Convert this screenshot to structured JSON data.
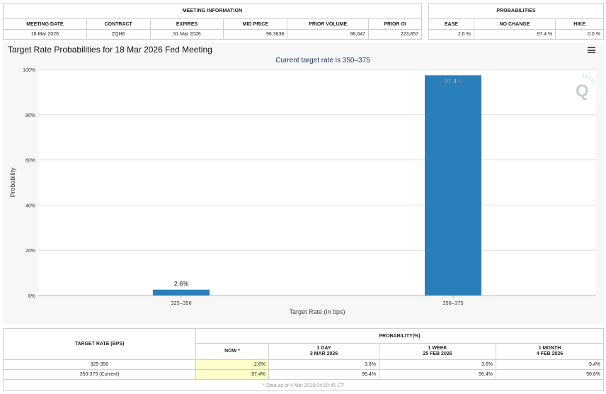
{
  "meeting_info": {
    "header": "MEETING INFORMATION",
    "columns": [
      "MEETING DATE",
      "CONTRACT",
      "EXPIRES",
      "MID PRICE",
      "PRIOR VOLUME",
      "PRIOR OI"
    ],
    "values": [
      "18 Mar 2026",
      "ZQH6",
      "31 Mar 2026",
      "96.3638",
      "98,647",
      "223,857"
    ]
  },
  "probabilities": {
    "header": "PROBABILITIES",
    "columns": [
      "EASE",
      "NO CHANGE",
      "HIKE"
    ],
    "values": [
      "2.6 %",
      "97.4 %",
      "0.0 %"
    ]
  },
  "chart_title": "Target Rate Probabilities for 18 Mar 2026 Fed Meeting",
  "chart_data": {
    "type": "bar",
    "title": "Current target rate is 350–375",
    "xlabel": "Target Rate (in bps)",
    "ylabel": "Probability",
    "categories": [
      "325–350",
      "350–375"
    ],
    "values": [
      2.6,
      97.4
    ],
    "data_labels": [
      "2.6%",
      "97.4%"
    ],
    "ylim": [
      0,
      100
    ],
    "yticks": [
      "0%",
      "20%",
      "40%",
      "60%",
      "80%",
      "100%"
    ],
    "grid": true,
    "bar_color": "#2a7fba"
  },
  "bottom_table": {
    "left_header": "TARGET RATE (BPS)",
    "prob_header": "PROBABILITY(%)",
    "now_label": "NOW *",
    "periods": [
      {
        "label": "1 DAY",
        "date": "3 MAR 2026"
      },
      {
        "label": "1 WEEK",
        "date": "25 FEB 2026"
      },
      {
        "label": "1 MONTH",
        "date": "4 FEB 2026"
      }
    ],
    "rows": [
      {
        "rate": "325-350",
        "now": "2.6%",
        "d1": "3.6%",
        "w1": "3.6%",
        "m1": "9.4%"
      },
      {
        "rate": "350-375 (Current)",
        "now": "97.4%",
        "d1": "96.4%",
        "w1": "96.4%",
        "m1": "90.6%"
      }
    ],
    "note": "* Data as of 4 Mar 2026 04:10:45 CT"
  }
}
